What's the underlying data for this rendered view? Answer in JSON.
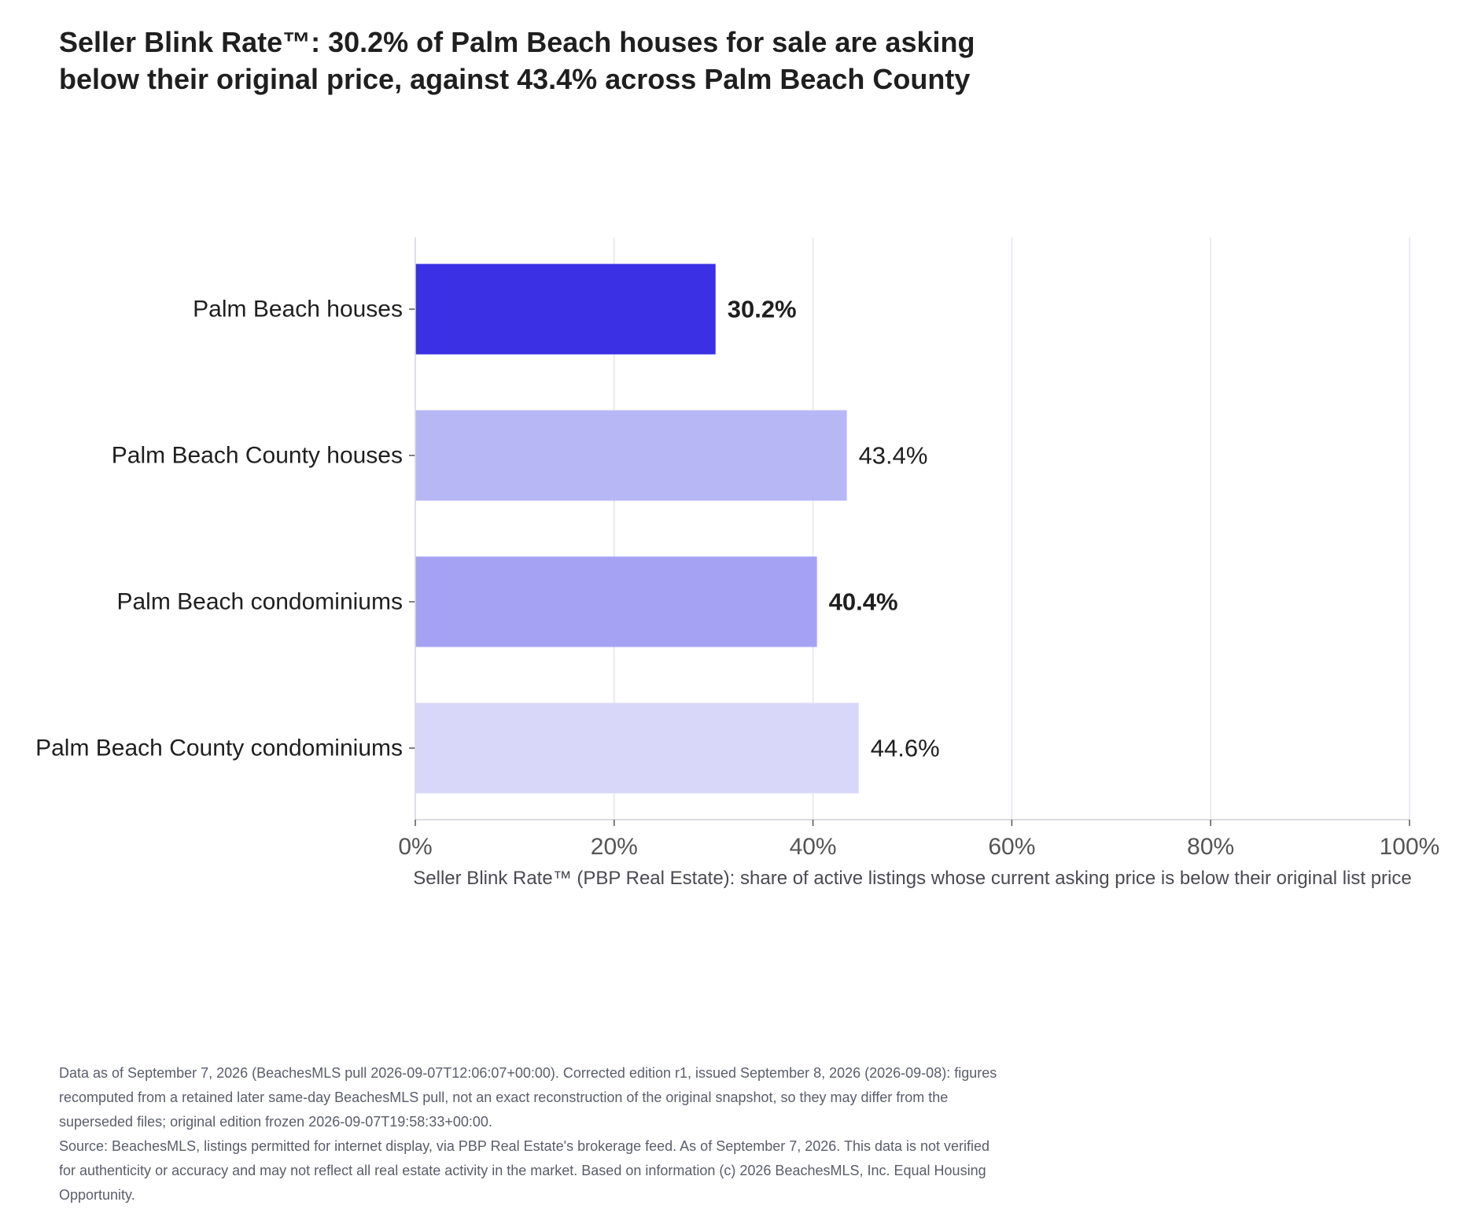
{
  "title_lines": [
    "Seller Blink Rate™: 30.2% of Palm Beach houses for sale are asking",
    "below their original price, against 43.4% across Palm Beach County"
  ],
  "chart_data": {
    "type": "bar",
    "orientation": "horizontal",
    "categories": [
      "Palm Beach houses",
      "Palm Beach County houses",
      "Palm Beach condominiums",
      "Palm Beach County condominiums"
    ],
    "values": [
      30.2,
      43.4,
      40.4,
      44.6
    ],
    "value_labels": [
      "30.2%",
      "43.4%",
      "40.4%",
      "44.6%"
    ],
    "bold_labels": [
      true,
      false,
      true,
      false
    ],
    "bar_colors": [
      "#3b30e4",
      "#b8b7f6",
      "#a6a2f3",
      "#d8d7fa"
    ],
    "xlim": [
      0,
      100
    ],
    "xticks": [
      0,
      20,
      40,
      60,
      80,
      100
    ],
    "xtick_labels": [
      "0%",
      "20%",
      "40%",
      "60%",
      "80%",
      "100%"
    ],
    "xlabel": "Seller Blink Rate™ (PBP Real Estate): share of active listings whose current asking price is below their original list price",
    "ylabel": "",
    "grid": "vertical"
  },
  "footnote": {
    "lines": [
      "Data as of September 7, 2026 (BeachesMLS pull 2026-09-07T12:06:07+00:00). Corrected edition r1, issued September 8, 2026 (2026-09-08): figures",
      "recomputed from a retained later same-day BeachesMLS pull, not an exact reconstruction of the original snapshot, so they may differ from the",
      "superseded files; original edition frozen 2026-09-07T19:58:33+00:00.",
      "Source: BeachesMLS, listings permitted for internet display, via PBP Real Estate's brokerage feed. As of September 7, 2026. This data is not verified",
      "for authenticity or accuracy and may not reflect all real estate activity in the market. Based on information (c) 2026 BeachesMLS, Inc. Equal Housing",
      "Opportunity."
    ]
  }
}
